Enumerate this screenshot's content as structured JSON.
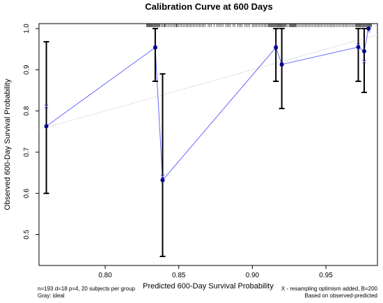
{
  "chart_data": {
    "type": "scatter",
    "title": "Calibration Curve at 600 Days",
    "xlabel": "Predicted 600-Day Survival Probability",
    "ylabel": "Observed 600-Day Survival Probability",
    "xlim": [
      0.755,
      0.985
    ],
    "ylim": [
      0.425,
      1.012
    ],
    "xticks": [
      0.8,
      0.85,
      0.9,
      0.95
    ],
    "xtick_labels": [
      "0.80",
      "0.85",
      "0.90",
      "0.95"
    ],
    "yticks": [
      0.5,
      0.6,
      0.7,
      0.8,
      0.9,
      1.0
    ],
    "ytick_labels": [
      "0.5",
      "0.6",
      "0.7",
      "0.8",
      "0.9",
      "1.0"
    ],
    "ideal_line": {
      "from": [
        0.755,
        0.755
      ],
      "to": [
        0.985,
        0.985
      ],
      "color": "#c8c8c8"
    },
    "observed": {
      "x": [
        0.76,
        0.834,
        0.839,
        0.916,
        0.92,
        0.972,
        0.976,
        0.979
      ],
      "y": [
        0.763,
        0.954,
        0.632,
        0.954,
        0.913,
        0.955,
        0.945,
        1.0
      ],
      "lower": [
        0.6,
        0.872,
        0.447,
        0.872,
        0.806,
        0.872,
        0.845,
        1.0
      ],
      "upper": [
        0.968,
        1.0,
        0.89,
        1.0,
        1.0,
        1.0,
        1.0,
        1.0
      ],
      "color": "#00008b",
      "line_color": "#6666ff"
    },
    "corrected": {
      "x": [
        0.76,
        0.834,
        0.839,
        0.916,
        0.92,
        0.972,
        0.976,
        0.979
      ],
      "y": [
        0.811,
        0.955,
        0.641,
        0.955,
        0.913,
        0.96,
        0.92,
        0.995
      ],
      "marker": "x",
      "color": "#5a5aff"
    },
    "rug_x": [
      0.828,
      0.8285,
      0.829,
      0.8295,
      0.83,
      0.8305,
      0.831,
      0.8315,
      0.832,
      0.8325,
      0.833,
      0.8335,
      0.834,
      0.8345,
      0.835,
      0.8355,
      0.836,
      0.8365,
      0.837,
      0.838,
      0.839,
      0.84,
      0.8405,
      0.841,
      0.842,
      0.843,
      0.844,
      0.845,
      0.846,
      0.847,
      0.848,
      0.8485,
      0.849,
      0.85,
      0.851,
      0.852,
      0.853,
      0.854,
      0.855,
      0.856,
      0.857,
      0.858,
      0.859,
      0.86,
      0.861,
      0.862,
      0.863,
      0.864,
      0.865,
      0.866,
      0.867,
      0.868,
      0.87,
      0.871,
      0.872,
      0.874,
      0.876,
      0.877,
      0.878,
      0.879,
      0.88,
      0.882,
      0.883,
      0.884,
      0.885,
      0.887,
      0.888,
      0.89,
      0.891,
      0.892,
      0.893,
      0.895,
      0.896,
      0.897,
      0.898,
      0.9,
      0.901,
      0.902,
      0.903,
      0.904,
      0.905,
      0.906,
      0.907,
      0.908,
      0.909,
      0.91,
      0.911,
      0.9115,
      0.912,
      0.9125,
      0.913,
      0.9135,
      0.914,
      0.9145,
      0.915,
      0.9155,
      0.916,
      0.9165,
      0.917,
      0.9175,
      0.918,
      0.9185,
      0.919,
      0.9195,
      0.92,
      0.9205,
      0.921,
      0.9215,
      0.922,
      0.9225,
      0.923,
      0.924,
      0.925,
      0.9255,
      0.926,
      0.9265,
      0.927,
      0.9275,
      0.928,
      0.9285,
      0.929,
      0.9295,
      0.93,
      0.931,
      0.932,
      0.933,
      0.934,
      0.935,
      0.936,
      0.937,
      0.938,
      0.939,
      0.94,
      0.941,
      0.942,
      0.943,
      0.944,
      0.945,
      0.946,
      0.947,
      0.948,
      0.949,
      0.95,
      0.951,
      0.952,
      0.953,
      0.954,
      0.955,
      0.956,
      0.957,
      0.958,
      0.959,
      0.96,
      0.961,
      0.962,
      0.963,
      0.964,
      0.965,
      0.966,
      0.967,
      0.968,
      0.969,
      0.97,
      0.9705,
      0.971,
      0.9715,
      0.972,
      0.9725,
      0.973,
      0.9735,
      0.974,
      0.9745,
      0.975,
      0.9755,
      0.976,
      0.9765,
      0.977,
      0.9775,
      0.978,
      0.9785,
      0.979,
      0.9795,
      0.98,
      0.9805,
      0.981
    ],
    "footnotes": {
      "left_line1": "n=193 d=18 p=4, 20 subjects per group",
      "left_line2": "Gray: ideal",
      "right_line1": "X - resampling optimism added, B=200",
      "right_line2": "Based on observed-predicted"
    }
  }
}
